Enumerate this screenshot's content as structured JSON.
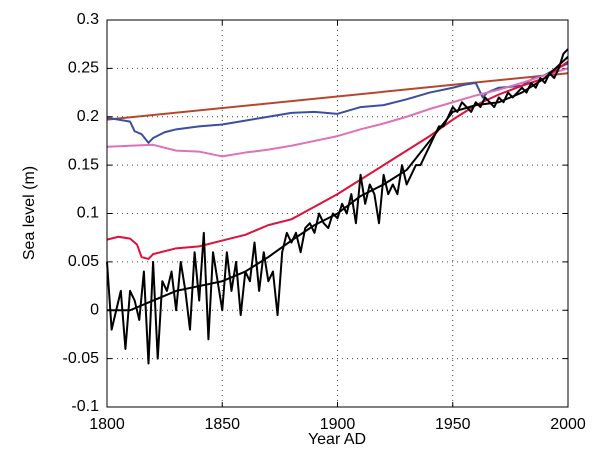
{
  "chart_data": {
    "type": "line",
    "x_label": "Year AD",
    "y_label": "Sea level (m)",
    "xlim": [
      1800,
      2000
    ],
    "xticks": [
      1800,
      1850,
      1900,
      1950,
      2000
    ],
    "ylim": [
      -0.1,
      0.3
    ],
    "yticks": [
      -0.1,
      -0.05,
      0,
      0.05,
      0.1,
      0.15,
      0.2,
      0.25,
      0.3
    ],
    "grid": true,
    "series": [
      {
        "color": "#b5472c",
        "x": [
          1800,
          2000
        ],
        "values": [
          0.197,
          0.245
        ]
      },
      {
        "color": "#3a4fa0",
        "x": [
          1800,
          1805,
          1810,
          1812,
          1815,
          1818,
          1820,
          1825,
          1830,
          1840,
          1850,
          1860,
          1870,
          1880,
          1890,
          1900,
          1910,
          1920,
          1930,
          1940,
          1950,
          1955,
          1960,
          1963,
          1965,
          1970,
          1980,
          1985,
          1990,
          1995,
          2000
        ],
        "values": [
          0.199,
          0.197,
          0.195,
          0.185,
          0.182,
          0.173,
          0.178,
          0.184,
          0.187,
          0.19,
          0.192,
          0.196,
          0.2,
          0.204,
          0.205,
          0.203,
          0.21,
          0.212,
          0.218,
          0.225,
          0.23,
          0.233,
          0.235,
          0.22,
          0.225,
          0.23,
          0.232,
          0.24,
          0.243,
          0.25,
          0.255
        ]
      },
      {
        "color": "#e070b8",
        "x": [
          1800,
          1820,
          1830,
          1840,
          1850,
          1860,
          1870,
          1880,
          1890,
          1900,
          1910,
          1920,
          1930,
          1940,
          1950,
          1960,
          1970,
          1980,
          1990,
          2000
        ],
        "values": [
          0.169,
          0.171,
          0.165,
          0.164,
          0.159,
          0.163,
          0.166,
          0.17,
          0.175,
          0.18,
          0.187,
          0.193,
          0.2,
          0.208,
          0.215,
          0.222,
          0.228,
          0.235,
          0.243,
          0.25
        ]
      },
      {
        "color": "#e0103a",
        "x": [
          1800,
          1805,
          1810,
          1813,
          1815,
          1818,
          1820,
          1830,
          1840,
          1850,
          1860,
          1870,
          1880,
          1890,
          1900,
          1910,
          1920,
          1930,
          1940,
          1950,
          1960,
          1970,
          1980,
          1990,
          2000
        ],
        "values": [
          0.073,
          0.076,
          0.074,
          0.068,
          0.055,
          0.053,
          0.058,
          0.064,
          0.066,
          0.072,
          0.078,
          0.088,
          0.094,
          0.107,
          0.12,
          0.135,
          0.15,
          0.165,
          0.18,
          0.197,
          0.212,
          0.223,
          0.232,
          0.24,
          0.257
        ]
      },
      {
        "color": "#000000",
        "x": [
          1800,
          1802,
          1804,
          1806,
          1808,
          1810,
          1812,
          1814,
          1816,
          1818,
          1820,
          1822,
          1824,
          1826,
          1828,
          1830,
          1832,
          1834,
          1836,
          1838,
          1840,
          1842,
          1844,
          1846,
          1848,
          1850,
          1852,
          1854,
          1856,
          1858,
          1860,
          1862,
          1864,
          1866,
          1868,
          1870,
          1872,
          1874,
          1876,
          1878,
          1880,
          1882,
          1884,
          1886,
          1888,
          1890,
          1892,
          1894,
          1896,
          1898,
          1900,
          1902,
          1904,
          1906,
          1908,
          1910,
          1912,
          1914,
          1916,
          1918,
          1920,
          1922,
          1924,
          1926,
          1928,
          1930,
          1932,
          1934,
          1936,
          1938,
          1940,
          1942,
          1944,
          1946,
          1948,
          1950,
          1952,
          1954,
          1956,
          1958,
          1960,
          1962,
          1964,
          1966,
          1968,
          1970,
          1972,
          1974,
          1976,
          1978,
          1980,
          1982,
          1984,
          1986,
          1988,
          1990,
          1992,
          1994,
          1996,
          1998,
          2000
        ],
        "values": [
          0.05,
          -0.02,
          0.0,
          0.02,
          -0.04,
          0.02,
          0.01,
          -0.01,
          0.04,
          -0.055,
          0.05,
          -0.05,
          0.03,
          0.02,
          0.04,
          0.0,
          0.05,
          0.02,
          -0.02,
          0.06,
          0.01,
          0.08,
          -0.03,
          0.06,
          0.03,
          0.0,
          0.06,
          0.02,
          0.05,
          -0.005,
          0.04,
          0.03,
          0.07,
          0.02,
          0.06,
          0.03,
          0.04,
          -0.005,
          0.06,
          0.08,
          0.07,
          0.08,
          0.06,
          0.085,
          0.09,
          0.08,
          0.1,
          0.09,
          0.085,
          0.1,
          0.095,
          0.11,
          0.1,
          0.12,
          0.09,
          0.14,
          0.11,
          0.13,
          0.12,
          0.09,
          0.14,
          0.12,
          0.13,
          0.12,
          0.15,
          0.13,
          0.14,
          0.15,
          0.15,
          0.16,
          0.17,
          0.18,
          0.19,
          0.19,
          0.2,
          0.21,
          0.205,
          0.215,
          0.21,
          0.205,
          0.215,
          0.21,
          0.22,
          0.215,
          0.21,
          0.22,
          0.215,
          0.225,
          0.22,
          0.225,
          0.23,
          0.225,
          0.235,
          0.23,
          0.24,
          0.235,
          0.245,
          0.24,
          0.25,
          0.265,
          0.27
        ]
      },
      {
        "color": "#000000",
        "x": [
          1800,
          1810,
          1820,
          1830,
          1840,
          1850,
          1860,
          1870,
          1880,
          1890,
          1900,
          1910,
          1920,
          1930,
          1940,
          1950,
          1960,
          1970,
          1980,
          1990,
          2000
        ],
        "values": [
          0.0,
          0.0,
          0.01,
          0.02,
          0.025,
          0.03,
          0.04,
          0.055,
          0.072,
          0.088,
          0.1,
          0.118,
          0.13,
          0.145,
          0.175,
          0.205,
          0.212,
          0.215,
          0.225,
          0.24,
          0.262
        ]
      }
    ]
  }
}
